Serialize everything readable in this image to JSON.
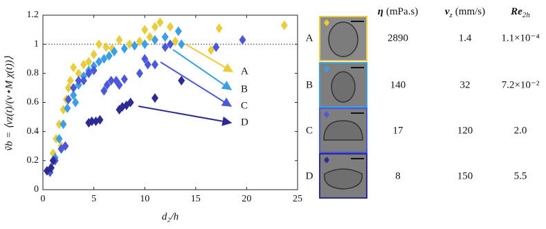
{
  "chart_data": {
    "type": "scatter",
    "x_label": "d₂/h",
    "y_label": "ṽb = ⟨vz(t)/(v⋆M χ(t))⟩",
    "xlim": [
      0,
      25
    ],
    "xticks": [
      0,
      5,
      10,
      15,
      20,
      25
    ],
    "ylim": [
      0,
      1.2
    ],
    "yticks": [
      0,
      0.2,
      0.4,
      0.6,
      0.8,
      1,
      1.2
    ],
    "reference_line": 1,
    "series": [
      {
        "name": "A",
        "color": "#e8cd3c",
        "x": [
          1,
          1.3,
          1.6,
          1.8,
          2,
          2.3,
          2.5,
          2.7,
          3,
          3.5,
          4,
          4.5,
          5,
          5.5,
          6.2,
          6.8,
          7.5,
          8.5,
          9.5,
          10,
          10.5,
          11,
          11.5,
          12,
          12.5,
          13,
          16.5,
          17.3,
          23.7
        ],
        "values": [
          0.25,
          0.35,
          0.45,
          0.3,
          0.55,
          0.62,
          0.7,
          0.75,
          0.84,
          0.8,
          0.86,
          0.88,
          0.93,
          1.0,
          0.98,
          0.97,
          1.03,
          1.0,
          1.02,
          1.1,
          1.05,
          1.12,
          1.15,
          1.05,
          1.12,
          1.02,
          0.96,
          1.11,
          1.13
        ]
      },
      {
        "name": "B",
        "color": "#3a9fe6",
        "x": [
          0.8,
          1.2,
          1.6,
          2,
          2.4,
          3,
          3.2,
          3.5,
          4,
          4.5,
          5,
          5.5,
          6,
          6.5,
          7,
          8,
          9,
          10,
          11,
          12,
          13.3,
          13.6
        ],
        "values": [
          0.15,
          0.22,
          0.35,
          0.45,
          0.56,
          0.65,
          0.6,
          0.72,
          0.78,
          0.82,
          0.85,
          0.88,
          0.9,
          0.92,
          0.95,
          0.97,
          0.99,
          1.0,
          1.03,
          1.05,
          1.09,
          1.0
        ]
      },
      {
        "name": "C",
        "color": "#4c58dc",
        "x": [
          0.7,
          1.2,
          1.8,
          2.2,
          2.5,
          3,
          3.5,
          4,
          4.5,
          5,
          6,
          6.3,
          6.7,
          7.2,
          7.5,
          8,
          9.5,
          10,
          10.3,
          11,
          12,
          12.5,
          17,
          19.6
        ],
        "values": [
          0.12,
          0.2,
          0.28,
          0.3,
          0.62,
          0.7,
          0.75,
          0.75,
          0.8,
          0.82,
          0.68,
          0.72,
          0.75,
          0.75,
          0.72,
          0.76,
          0.8,
          0.9,
          0.86,
          0.86,
          0.98,
          1.0,
          0.98,
          1.03
        ]
      },
      {
        "name": "D",
        "color": "#2e2a94",
        "x": [
          0.4,
          0.8,
          1,
          4.5,
          4.8,
          5.2,
          5.6,
          7.5,
          7.8,
          8.2,
          8.6,
          11,
          13.6
        ],
        "values": [
          0.13,
          0.15,
          0.2,
          0.46,
          0.47,
          0.47,
          0.48,
          0.55,
          0.57,
          0.58,
          0.6,
          0.63,
          0.75
        ]
      }
    ]
  },
  "table": {
    "header": [
      {
        "symbol": "η",
        "unit": "(mPa.s)"
      },
      {
        "symbol": "v",
        "sub": "z",
        "unit": "(mm/s)"
      },
      {
        "symbol": "Re",
        "sub": "2h"
      }
    ],
    "rows": [
      {
        "label": "A",
        "cells": [
          2890,
          1.4,
          "1.1×10⁻⁴"
        ]
      },
      {
        "label": "B",
        "cells": [
          140,
          32,
          "7.2×10⁻²"
        ]
      },
      {
        "label": "C",
        "cells": [
          17,
          120,
          "2.0"
        ]
      },
      {
        "label": "D",
        "cells": [
          8,
          150,
          5.5
        ]
      }
    ]
  }
}
